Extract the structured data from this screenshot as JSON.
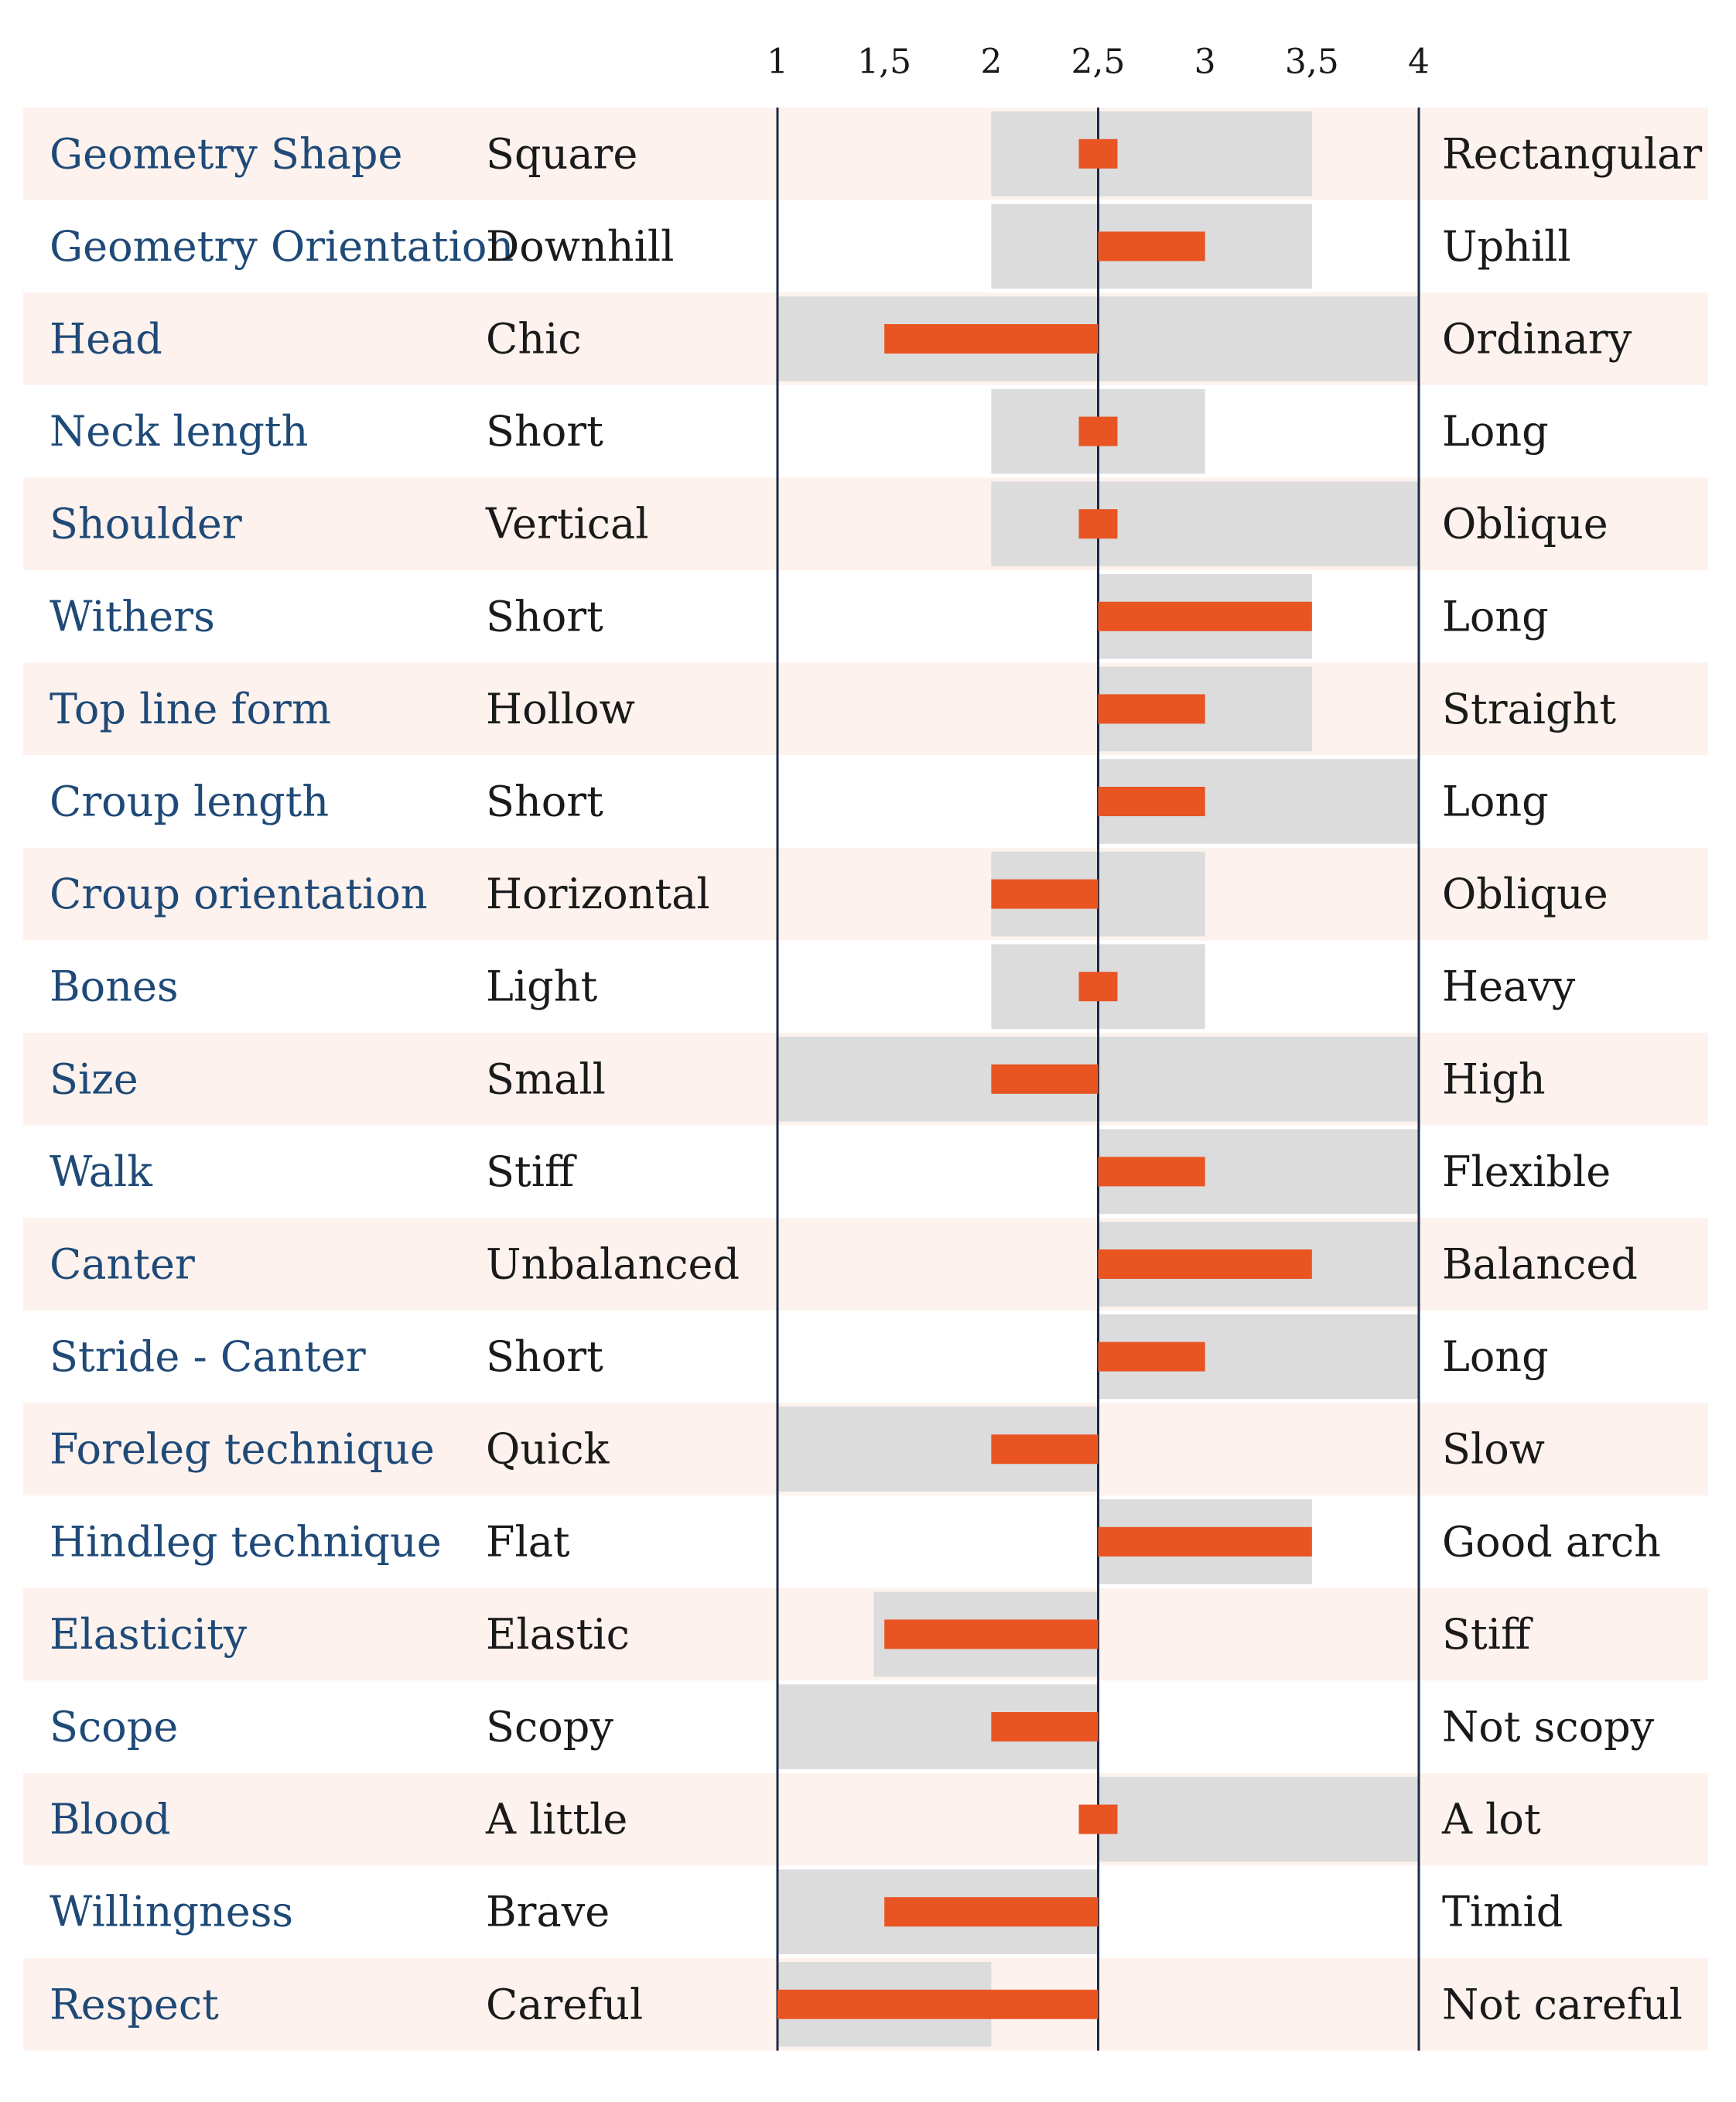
{
  "chart_data": {
    "type": "bar",
    "x_ticks": [
      "1",
      "1,5",
      "2",
      "2,5",
      "3",
      "3,5",
      "4"
    ],
    "xlim": [
      1,
      4
    ],
    "center": 2.5,
    "colors": {
      "row_alt": "#fdf2ed",
      "range": "#dcdcdc",
      "bar": "#e85422",
      "axis": "#1c2b45",
      "trait_text": "#1f4a78",
      "label_text": "#1a1a1a"
    },
    "rows": [
      {
        "trait": "Geometry Shape",
        "left": "Square",
        "right": "Rectangular",
        "range": [
          2,
          3.5
        ],
        "value": 2.5
      },
      {
        "trait": "Geometry Orientation",
        "left": "Downhill",
        "right": "Uphill",
        "range": [
          2,
          3.5
        ],
        "value": 3
      },
      {
        "trait": "Head",
        "left": "Chic",
        "right": "Ordinary",
        "range": [
          1,
          4
        ],
        "value": 1.5
      },
      {
        "trait": "Neck length",
        "left": "Short",
        "right": "Long",
        "range": [
          2,
          3
        ],
        "value": 2.5
      },
      {
        "trait": "Shoulder",
        "left": "Vertical",
        "right": "Oblique",
        "range": [
          2,
          4
        ],
        "value": 2.5
      },
      {
        "trait": "Withers",
        "left": "Short",
        "right": "Long",
        "range": [
          2.5,
          3.5
        ],
        "value": 3.5
      },
      {
        "trait": "Top line form",
        "left": "Hollow",
        "right": "Straight",
        "range": [
          2.5,
          3.5
        ],
        "value": 3
      },
      {
        "trait": "Croup length",
        "left": "Short",
        "right": "Long",
        "range": [
          2.5,
          4
        ],
        "value": 3
      },
      {
        "trait": "Croup orientation",
        "left": "Horizontal",
        "right": "Oblique",
        "range": [
          2,
          3
        ],
        "value": 2
      },
      {
        "trait": "Bones",
        "left": "Light",
        "right": "Heavy",
        "range": [
          2,
          3
        ],
        "value": 2.5
      },
      {
        "trait": "Size",
        "left": "Small",
        "right": "High",
        "range": [
          1,
          4
        ],
        "value": 2
      },
      {
        "trait": "Walk",
        "left": "Stiff",
        "right": "Flexible",
        "range": [
          2.5,
          4
        ],
        "value": 3
      },
      {
        "trait": "Canter",
        "left": "Unbalanced",
        "right": "Balanced",
        "range": [
          2.5,
          4
        ],
        "value": 3.5
      },
      {
        "trait": "Stride - Canter",
        "left": "Short",
        "right": "Long",
        "range": [
          2.5,
          4
        ],
        "value": 3
      },
      {
        "trait": "Foreleg technique",
        "left": "Quick",
        "right": "Slow",
        "range": [
          1,
          2.5
        ],
        "value": 2
      },
      {
        "trait": "Hindleg technique",
        "left": "Flat",
        "right": "Good arch",
        "range": [
          2.5,
          3.5
        ],
        "value": 3.5
      },
      {
        "trait": "Elasticity",
        "left": "Elastic",
        "right": "Stiff",
        "range": [
          1.45,
          2.5
        ],
        "value": 1.5
      },
      {
        "trait": "Scope",
        "left": "Scopy",
        "right": "Not scopy",
        "range": [
          1,
          2.5
        ],
        "value": 2
      },
      {
        "trait": "Blood",
        "left": "A little",
        "right": "A lot",
        "range": [
          2.5,
          4
        ],
        "value": 2.5
      },
      {
        "trait": "Willingness",
        "left": "Brave",
        "right": "Timid",
        "range": [
          1,
          2.5
        ],
        "value": 1.5
      },
      {
        "trait": "Respect",
        "left": "Careful",
        "right": "Not careful",
        "range": [
          1,
          2
        ],
        "value": 1
      }
    ]
  }
}
